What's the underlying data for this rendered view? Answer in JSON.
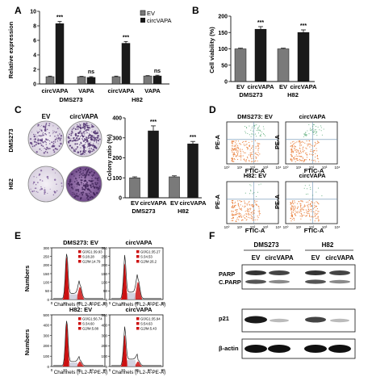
{
  "panels": {
    "A": "A",
    "B": "B",
    "C": "C",
    "D": "D",
    "E": "E",
    "F": "F"
  },
  "panelA": {
    "ylabel": "Relative expression",
    "legend": [
      "EV",
      "circVAPA"
    ],
    "xticks": [
      "circVAPA",
      "VAPA",
      "circVAPA",
      "VAPA"
    ],
    "groups": [
      "DMS273",
      "H82"
    ],
    "sig": [
      "***",
      "ns",
      "***",
      "ns"
    ],
    "yticks": [
      "0",
      "2",
      "4",
      "6",
      "8",
      "10"
    ]
  },
  "panelB": {
    "ylabel": "Cell viability (%)",
    "xticks": [
      "EV",
      "circVAPA",
      "EV",
      "circVAPA"
    ],
    "groups": [
      "DMS273",
      "H82"
    ],
    "sig": [
      "***",
      "***"
    ],
    "yticks": [
      "0",
      "50",
      "100",
      "150",
      "200"
    ]
  },
  "panelC": {
    "cols": [
      "EV",
      "circVAPA"
    ],
    "rows": [
      "DMS273",
      "H82"
    ],
    "ylabel": "Colony ratio (%)",
    "xticks": [
      "EV",
      "circVAPA",
      "EV",
      "circVAPA"
    ],
    "groups": [
      "DMS273",
      "H82"
    ],
    "sig": [
      "***",
      "***"
    ],
    "yticks": [
      "0",
      "100",
      "200",
      "300",
      "400"
    ]
  },
  "panelD": {
    "titles": [
      "DMS273: EV",
      "circVAPA",
      "H82: EV",
      "circVAPA"
    ],
    "ylabel": "PE-A",
    "xlabel": "FTIC-A"
  },
  "panelE": {
    "titles": [
      "DMS273: EV",
      "circVAPA",
      "H82: EV",
      "circVAPA"
    ],
    "ylabel": "Numbers",
    "xlabel": "Channels (FL2-A-PE-A)",
    "legends": [
      [
        "G0/G1:39.93",
        "S:28.28",
        "G2/M:14.79"
      ],
      [
        "G0/G1:35.27",
        "S:34.53",
        "G2/M:26.2"
      ],
      [
        "G0/G1:56.74",
        "S:34.60",
        "G2/M:5.88"
      ],
      [
        "G0/G1:35.94",
        "S:54.63",
        "G2/M:5.43"
      ]
    ],
    "yticks_top": [
      "0",
      "50",
      "100",
      "150",
      "200",
      "250",
      "300"
    ],
    "yticks_bottom": [
      "0",
      "100",
      "200",
      "300",
      "400",
      "500"
    ],
    "xticks": [
      "0",
      "20",
      "40",
      "60",
      "80"
    ]
  },
  "panelF": {
    "groups": [
      "DMS273",
      "H82"
    ],
    "lanes": [
      "EV",
      "circVAPA",
      "EV",
      "circVAPA"
    ],
    "rows": [
      "PARP",
      "C.PARP",
      "p21",
      "β-actin"
    ]
  },
  "colors": {
    "ev_bar": "#7a7a7a",
    "circ_bar": "#1a1a1a",
    "histogram_red": "#cc1111",
    "flow_orange": "#e8742a",
    "flow_green": "#4aa36b"
  },
  "chart_data": [
    {
      "type": "bar",
      "title": "",
      "categories": [
        "DMS273 circVAPA",
        "DMS273 VAPA",
        "H82 circVAPA",
        "H82 VAPA"
      ],
      "series": [
        {
          "name": "EV",
          "values": [
            1.0,
            1.0,
            1.0,
            1.1
          ]
        },
        {
          "name": "circVAPA",
          "values": [
            8.3,
            0.9,
            5.6,
            1.1
          ]
        }
      ],
      "ylabel": "Relative expression",
      "ylim": [
        0,
        10
      ]
    },
    {
      "type": "bar",
      "title": "",
      "categories": [
        "DMS273 EV",
        "DMS273 circVAPA",
        "H82 EV",
        "H82 circVAPA"
      ],
      "values": [
        100,
        160,
        100,
        150
      ],
      "ylabel": "Cell viability (%)",
      "ylim": [
        0,
        200
      ]
    },
    {
      "type": "bar",
      "title": "",
      "categories": [
        "DMS273 EV",
        "DMS273 circVAPA",
        "H82 EV",
        "H82 circVAPA"
      ],
      "values": [
        100,
        335,
        105,
        270
      ],
      "ylabel": "Colony ratio (%)",
      "ylim": [
        0,
        400
      ]
    }
  ]
}
